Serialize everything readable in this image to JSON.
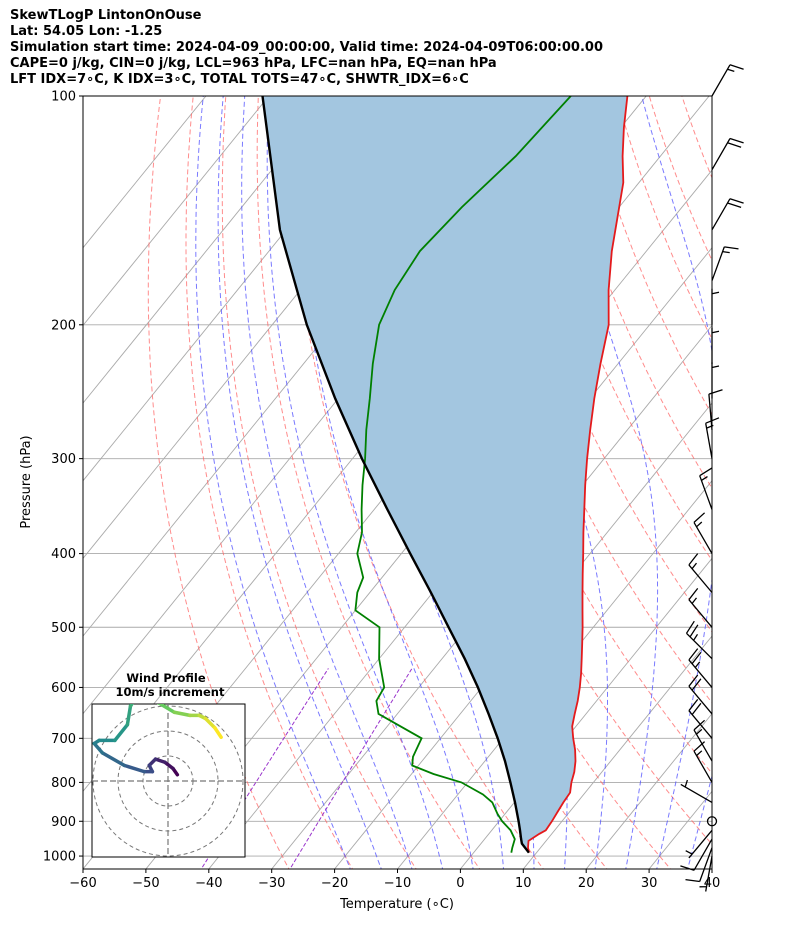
{
  "header": {
    "line1": "SkewTLogP LintonOnOuse",
    "line2": "Lat: 54.05   Lon: -1.25",
    "line3": "Simulation start time: 2024-04-09_00:00:00, Valid time: 2024-04-09T06:00:00.00",
    "line4": "CAPE=0 j/kg, CIN=0 j/kg, LCL=963 hPa, LFC=nan hPa, EQ=nan hPa",
    "line5": "LFT IDX=7∘C, K IDX=3∘C, TOTAL TOTS=47∘C, SHWTR_IDX=6∘C"
  },
  "colors": {
    "temperature": "#e41a1c",
    "dewpoint": "#008000",
    "parcel": "#000000",
    "shade": "#a3c6e0",
    "dry_adiabat": "#ff6666",
    "moist_adiabat": "#4d4dff",
    "mixing_ratio": "#9933cc",
    "isotherm": "#aaaaaa"
  },
  "chart_data": {
    "type": "line",
    "xlabel": "Temperature (∘C)",
    "ylabel": "Pressure (hPa)",
    "xlim": [
      -60,
      40
    ],
    "ylim": [
      1040,
      100
    ],
    "yscale": "log",
    "skewed": true,
    "grid": true,
    "x_ticks": [
      "−60",
      "−50",
      "−40",
      "−30",
      "−20",
      "−10",
      "0",
      "10",
      "20",
      "30",
      "40"
    ],
    "y_ticks": [
      "100",
      "200",
      "300",
      "400",
      "500",
      "600",
      "700",
      "800",
      "900",
      "1000"
    ],
    "series": [
      {
        "key": "temperature",
        "pressure": [
          990,
          975,
          955,
          935,
          925,
          900,
          875,
          850,
          825,
          800,
          775,
          750,
          725,
          700,
          675,
          650,
          625,
          600,
          575,
          550,
          525,
          500,
          475,
          450,
          425,
          400,
          375,
          350,
          325,
          300,
          275,
          250,
          225,
          200,
          180,
          160,
          140,
          130,
          120,
          110,
          100
        ],
        "temp": [
          8.8,
          8.0,
          7.2,
          8.0,
          8.6,
          8.4,
          8.1,
          7.8,
          7.6,
          6.5,
          5.6,
          4.4,
          2.9,
          1.1,
          -0.6,
          -1.8,
          -3.0,
          -4.4,
          -6.0,
          -7.8,
          -9.7,
          -11.7,
          -13.9,
          -16.2,
          -18.6,
          -21.1,
          -23.8,
          -26.6,
          -29.6,
          -32.7,
          -35.9,
          -39.3,
          -42.8,
          -46.5,
          -51.0,
          -55.5,
          -60.0,
          -62.5,
          -66.0,
          -69.5,
          -73.0
        ]
      },
      {
        "key": "dewpoint",
        "pressure": [
          990,
          975,
          950,
          925,
          900,
          880,
          850,
          830,
          800,
          780,
          760,
          740,
          700,
          650,
          625,
          600,
          550,
          500,
          475,
          450,
          430,
          400,
          375,
          350,
          325,
          300,
          275,
          250,
          225,
          200,
          180,
          160,
          140,
          120,
          100
        ],
        "dewp": [
          6.0,
          5.5,
          4.8,
          3.0,
          0.5,
          -1.2,
          -3.5,
          -6.0,
          -11.0,
          -16.5,
          -21.0,
          -22.0,
          -23.0,
          -33.0,
          -35.0,
          -35.5,
          -40.0,
          -44.0,
          -50.0,
          -52.0,
          -53.0,
          -57.0,
          -59.0,
          -62.0,
          -65.0,
          -68.0,
          -71.5,
          -75.0,
          -79.0,
          -83.0,
          -85.0,
          -86.0,
          -85.0,
          -83.0,
          -82.0
        ]
      },
      {
        "key": "parcel",
        "pressure": [
          990,
          963,
          950,
          925,
          900,
          850,
          800,
          750,
          700,
          650,
          600,
          550,
          500,
          450,
          400,
          350,
          300,
          250,
          200,
          150,
          100
        ],
        "temp": [
          8.8,
          6.5,
          5.8,
          4.5,
          3.1,
          0.1,
          -3.2,
          -6.8,
          -10.9,
          -15.5,
          -20.6,
          -26.4,
          -33.0,
          -40.3,
          -48.6,
          -57.9,
          -68.5,
          -80.5,
          -94.5,
          -111.0,
          -131.0
        ]
      }
    ],
    "wind_barbs": {
      "pressure": [
        1000,
        975,
        950,
        925,
        900,
        850,
        800,
        750,
        700,
        650,
        600,
        550,
        500,
        450,
        400,
        350,
        300,
        275,
        250,
        225,
        200,
        175,
        150,
        125,
        100
      ],
      "speed_kt": [
        5,
        10,
        10,
        5,
        0,
        5,
        15,
        15,
        20,
        20,
        25,
        25,
        15,
        15,
        15,
        15,
        15,
        10,
        5,
        5,
        5,
        15,
        20,
        20,
        15
      ],
      "direction_deg": [
        190,
        200,
        210,
        220,
        0,
        300,
        330,
        330,
        320,
        320,
        320,
        315,
        320,
        320,
        330,
        340,
        350,
        355,
        0,
        0,
        0,
        20,
        30,
        30,
        30
      ]
    },
    "inset": {
      "title1": "Wind Profile",
      "title2": "10m/s increment",
      "rings": 3,
      "hodograph_u": [
        1.5,
        0.8,
        -0.5,
        -2.0,
        -3.0,
        -2.5,
        -3.8,
        -7.0,
        -10.5,
        -11.8,
        -11.0,
        -8.5,
        -6.5,
        -6.0,
        -5.0,
        -3.5,
        -1.5,
        1.0,
        3.5,
        5.0,
        6.0,
        7.5,
        8.5
      ],
      "hodograph_v": [
        1.0,
        2.0,
        3.0,
        3.5,
        2.5,
        1.5,
        1.5,
        2.5,
        4.5,
        6.0,
        6.5,
        6.5,
        9.0,
        12.0,
        13.5,
        13.5,
        12.5,
        11.0,
        10.5,
        10.5,
        10.0,
        8.5,
        7.0
      ]
    }
  }
}
